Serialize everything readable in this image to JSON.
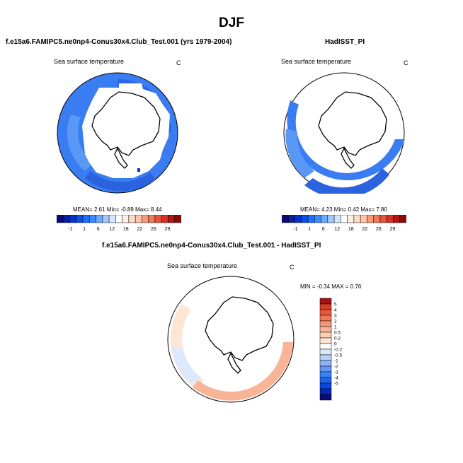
{
  "figure": {
    "title": "DJF",
    "panels": [
      {
        "id": "model",
        "title": "f.e15a6.FAMIPC5.ne0np4-Conus30x4.Club_Test.001 (yrs 1979-2004)",
        "variable": "Sea surface temperature",
        "units": "C",
        "stats": "MEAN=   2.61  Min=  -0.89  Max=    8.44"
      },
      {
        "id": "obs",
        "title": "HadISST_PI",
        "variable": "Sea surface temperature",
        "units": "C",
        "stats": "MEAN=   4.23  Min=   0.42  Max=    7.80"
      },
      {
        "id": "diff",
        "title": "f.e15a6.FAMIPC5.ne0np4-Conus30x4.Club_Test.001 - HadISST_PI",
        "variable": "Sea surface temperature",
        "units": "C",
        "stats": "MIN =  -0.34 MAX =   0.76"
      }
    ]
  },
  "colors": {
    "abs_scale": [
      "#0a0a78",
      "#0a1ea0",
      "#0a32c8",
      "#0a50e6",
      "#1e6eff",
      "#3c8cff",
      "#6eaaff",
      "#a0c8ff",
      "#d2e6ff",
      "#ffffff",
      "#fff0e6",
      "#ffdcc8",
      "#ffc3a5",
      "#fa9b78",
      "#f07855",
      "#e6553c",
      "#d23228",
      "#b41414",
      "#8c0a0a"
    ],
    "diff_scale": [
      "#0a0a78",
      "#0a28b4",
      "#0a46dc",
      "#1e64f0",
      "#3c82f5",
      "#6496f5",
      "#8cb4fa",
      "#b4d2fa",
      "#dce8fc",
      "#ffffff",
      "#fde6d6",
      "#fcd2b4",
      "#f8b496",
      "#f59678",
      "#f07855",
      "#e65a3c",
      "#d23c28",
      "#a01414"
    ]
  },
  "chart_data": [
    {
      "type": "heatmap",
      "panel": "model",
      "projection": "south-polar-stereographic",
      "title": "f.e15a6.FAMIPC5.ne0np4-Conus30x4.Club_Test.001 (yrs 1979-2004)",
      "variable": "Sea surface temperature",
      "units": "C",
      "colorbar_ticks": [
        "-1",
        "1",
        "6",
        "12",
        "18",
        "22",
        "26",
        "29"
      ],
      "mean": 2.61,
      "min": -0.89,
      "max": 8.44,
      "field_sectors": [
        {
          "lon_from": 0,
          "lon_to": 60,
          "value": 3
        },
        {
          "lon_from": 60,
          "lon_to": 120,
          "value": 4
        },
        {
          "lon_from": 120,
          "lon_to": 180,
          "value": 3
        },
        {
          "lon_from": 180,
          "lon_to": 240,
          "value": 2
        },
        {
          "lon_from": 240,
          "lon_to": 300,
          "value": 1
        },
        {
          "lon_from": 300,
          "lon_to": 360,
          "value": 2
        }
      ]
    },
    {
      "type": "heatmap",
      "panel": "obs",
      "projection": "south-polar-stereographic",
      "title": "HadISST_PI",
      "variable": "Sea surface temperature",
      "units": "C",
      "colorbar_ticks": [
        "-1",
        "1",
        "6",
        "12",
        "18",
        "22",
        "26",
        "29"
      ],
      "mean": 4.23,
      "min": 0.42,
      "max": 7.8,
      "field_sectors": [
        {
          "lon_from": 180,
          "lon_to": 240,
          "value": 4
        },
        {
          "lon_from": 240,
          "lon_to": 300,
          "value": 3
        },
        {
          "lon_from": 300,
          "lon_to": 330,
          "value": 3
        }
      ]
    },
    {
      "type": "heatmap",
      "panel": "diff",
      "projection": "south-polar-stereographic",
      "title": "f.e15a6.FAMIPC5.ne0np4-Conus30x4.Club_Test.001 - HadISST_PI",
      "variable": "Sea surface temperature",
      "units": "C",
      "colorbar_ticks": [
        "5",
        "4",
        "3",
        "2",
        "1",
        "0.5",
        "0.2",
        "0",
        "-0.2",
        "-0.5",
        "-1",
        "-2",
        "-3",
        "-4",
        "-5"
      ],
      "min": -0.34,
      "max": 0.76,
      "field_sectors": [
        {
          "lon_from": 180,
          "lon_to": 240,
          "value": 0.4
        },
        {
          "lon_from": 240,
          "lon_to": 280,
          "value": -0.2
        },
        {
          "lon_from": 280,
          "lon_to": 330,
          "value": 0.3
        }
      ]
    }
  ]
}
